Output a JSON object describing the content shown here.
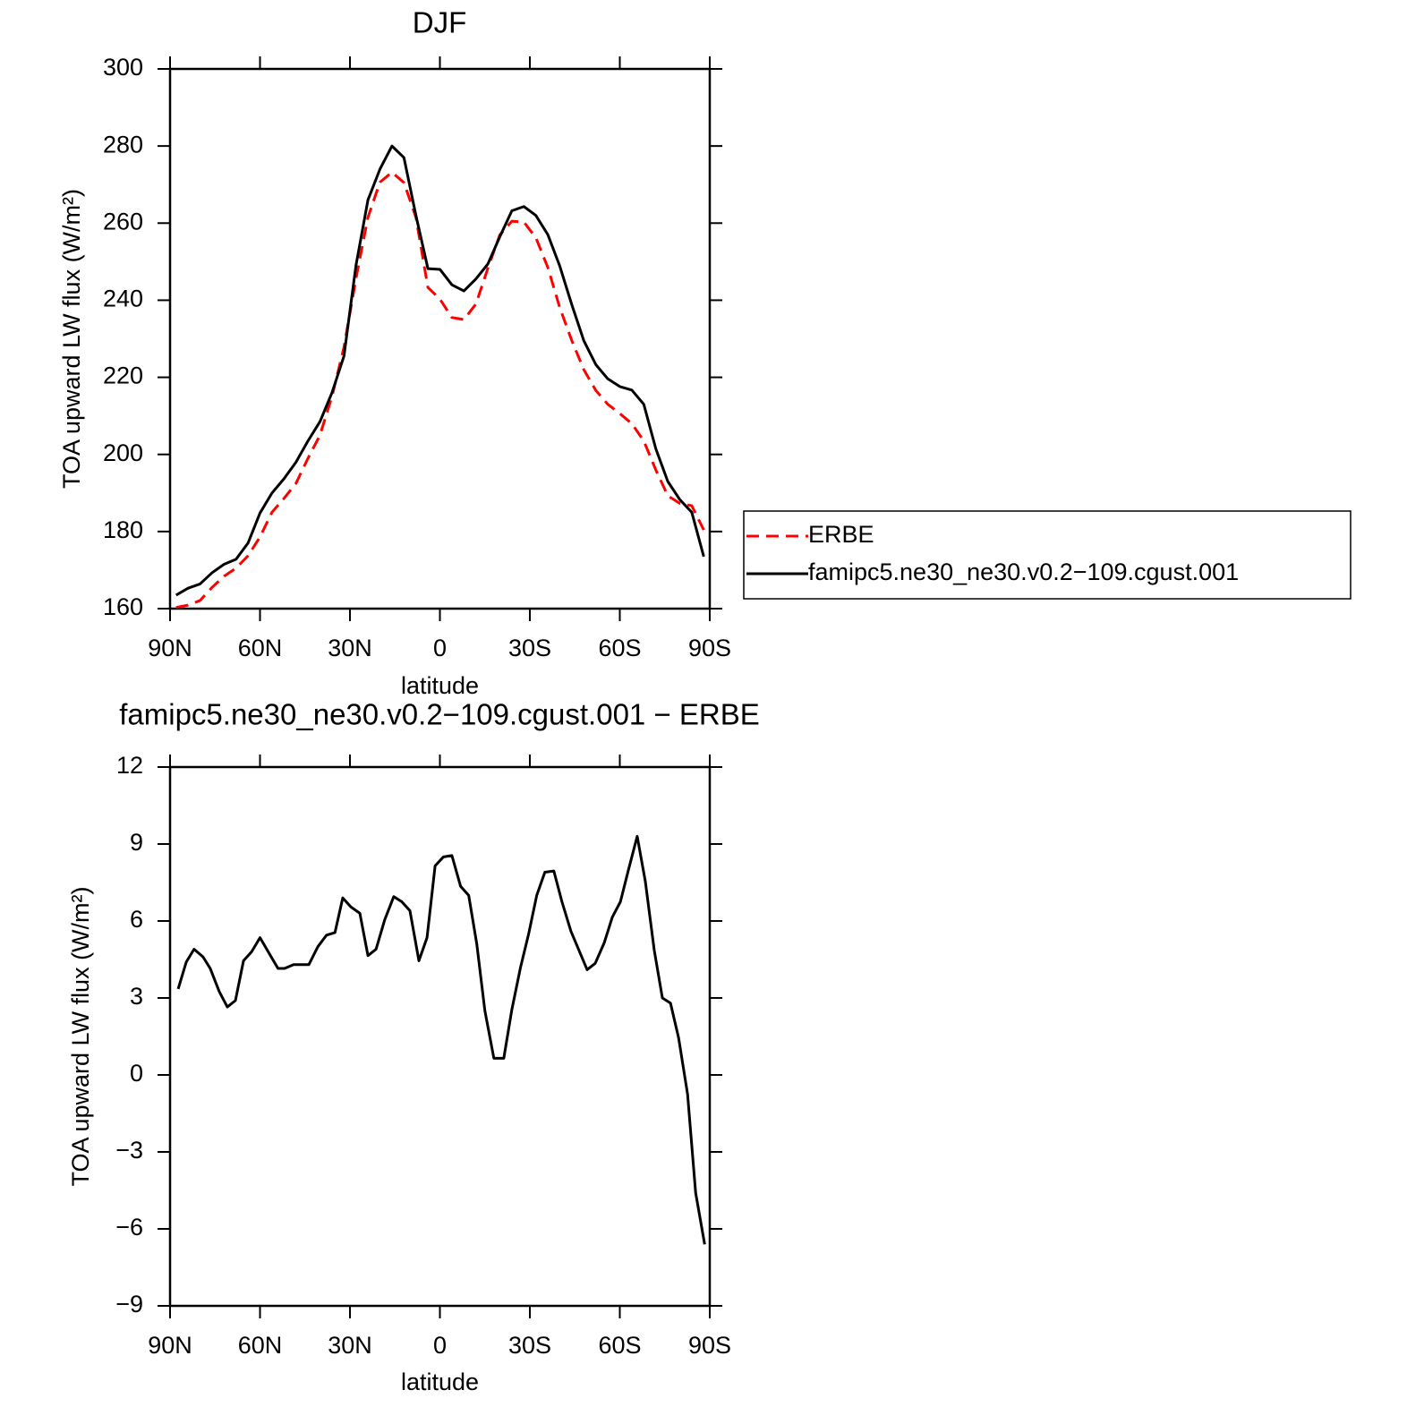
{
  "chart_data": [
    {
      "type": "line",
      "title": "DJF",
      "xlabel": "latitude",
      "ylabel": "TOA upward LW flux (W/m²)",
      "x": [
        88,
        84,
        80,
        76,
        72,
        68,
        64,
        60,
        56,
        52,
        48,
        44,
        40,
        36,
        32,
        28,
        24,
        20,
        16,
        12,
        8,
        4,
        0,
        -4,
        -8,
        -12,
        -16,
        -20,
        -24,
        -28,
        -32,
        -36,
        -40,
        -44,
        -48,
        -52,
        -56,
        -60,
        -64,
        -68,
        -72,
        -76,
        -80,
        -84,
        -88
      ],
      "series": [
        {
          "name": "ERBE",
          "color": "#ff0000",
          "linestyle": "dashed",
          "values": [
            160.3,
            160.9,
            162.1,
            165.5,
            168.4,
            170.5,
            173.7,
            178.6,
            185,
            188.6,
            192.5,
            199,
            205,
            215,
            227.8,
            245.6,
            261.5,
            270.6,
            273.2,
            270.5,
            261.5,
            243.3,
            240.3,
            235.5,
            235,
            239,
            248.3,
            257,
            260.5,
            260.3,
            256.2,
            248.5,
            238,
            229.5,
            222,
            216.6,
            213,
            210.6,
            208,
            203.5,
            196,
            189.3,
            187.3,
            186.7,
            180.4
          ]
        },
        {
          "name": "famipc5.ne30_ne30.v0.2−109.cgust.001",
          "color": "#000000",
          "linestyle": "solid",
          "values": [
            163.5,
            165.3,
            166.4,
            169.3,
            171.5,
            172.8,
            177,
            184.8,
            190,
            193.7,
            198,
            203.5,
            208.5,
            216,
            225.5,
            249,
            266,
            274,
            280,
            277,
            262,
            248.2,
            248,
            244,
            242.4,
            245.5,
            249.4,
            256.5,
            263.2,
            264.3,
            262,
            257,
            248.8,
            238.8,
            229.5,
            223.3,
            219.6,
            217.6,
            216.7,
            213,
            201.5,
            193,
            188.3,
            185,
            173.5
          ]
        }
      ],
      "xlim": [
        90,
        -90
      ],
      "ylim": [
        160,
        300
      ],
      "xticks": [
        {
          "value": 90,
          "label": "90N"
        },
        {
          "value": 60,
          "label": "60N"
        },
        {
          "value": 30,
          "label": "30N"
        },
        0,
        {
          "value": -30,
          "label": "30S"
        },
        {
          "value": -60,
          "label": "60S"
        },
        {
          "value": -90,
          "label": "90S"
        }
      ],
      "yticks": [
        160,
        180,
        200,
        220,
        240,
        260,
        280,
        300
      ],
      "legend": "right"
    },
    {
      "type": "line",
      "title": "famipc5.ne30_ne30.v0.2−109.cgust.001 − ERBE",
      "xlabel": "latitude",
      "ylabel": "TOA upward LW flux (W/m²)",
      "x": [
        87.3,
        84.6,
        82,
        79,
        76.6,
        73.6,
        70.9,
        68.2,
        65.5,
        62.8,
        60,
        57,
        54,
        51.8,
        48.8,
        43.7,
        40.7,
        37.8,
        35,
        32.4,
        29.7,
        26.7,
        24,
        21.3,
        18.4,
        15.4,
        12.7,
        10,
        7,
        4.3,
        1.6,
        -1.2,
        -4,
        -6.9,
        -9.6,
        -12.3,
        -15,
        -18,
        -21.3,
        -24,
        -26.9,
        -29.6,
        -32.3,
        -35,
        -38,
        -40.7,
        -43.7,
        -46.4,
        -49.1,
        -51.8,
        -54.8,
        -57.5,
        -60.2,
        -62.9,
        -65.8,
        -68.5,
        -71.5,
        -74.2,
        -76.9,
        -79.6,
        -82.6,
        -85.3,
        -88.3
      ],
      "values": [
        3.35,
        4.4,
        4.9,
        4.6,
        4.15,
        3.25,
        2.65,
        2.9,
        4.45,
        4.8,
        5.35,
        4.75,
        4.15,
        4.15,
        4.3,
        4.3,
        5,
        5.45,
        5.55,
        6.9,
        6.55,
        6.3,
        4.65,
        4.9,
        6.05,
        6.95,
        6.75,
        6.4,
        4.45,
        5.35,
        8.15,
        8.5,
        8.55,
        7.35,
        7,
        5.1,
        2.5,
        0.65,
        0.65,
        2.55,
        4.2,
        5.5,
        7,
        7.9,
        7.95,
        6.75,
        5.6,
        4.85,
        4.1,
        4.35,
        5.15,
        6.15,
        6.75,
        8,
        9.3,
        7.55,
        4.85,
        3,
        2.8,
        1.45,
        -0.75,
        -4.6,
        -6.6
      ],
      "color": "#000000",
      "xlim": [
        90,
        -90
      ],
      "ylim": [
        -9,
        12
      ],
      "xticks": [
        {
          "value": 90,
          "label": "90N"
        },
        {
          "value": 60,
          "label": "60N"
        },
        {
          "value": 30,
          "label": "30N"
        },
        0,
        {
          "value": -30,
          "label": "30S"
        },
        {
          "value": -60,
          "label": "60S"
        },
        {
          "value": -90,
          "label": "90S"
        }
      ],
      "yticks": [
        {
          "value": -9,
          "label": "−9"
        },
        {
          "value": -6,
          "label": "−6"
        },
        {
          "value": -3,
          "label": "−3"
        },
        0,
        3,
        6,
        9,
        12
      ]
    }
  ]
}
